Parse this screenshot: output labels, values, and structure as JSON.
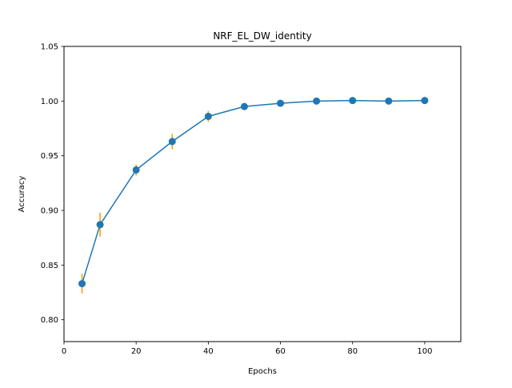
{
  "chart_data": {
    "type": "line",
    "title": "NRF_EL_DW_identity",
    "xlabel": "Epochs",
    "ylabel": "Accuracy",
    "xlim": [
      0,
      110
    ],
    "ylim": [
      0.78,
      1.05
    ],
    "xticks": [
      0,
      20,
      40,
      60,
      80,
      100
    ],
    "yticks": [
      0.8,
      0.85,
      0.9,
      0.95,
      1.0,
      1.05
    ],
    "grid": false,
    "series": [
      {
        "x": [
          5,
          10,
          20,
          30,
          40,
          50,
          60,
          70,
          80,
          90,
          100
        ],
        "y": [
          0.833,
          0.887,
          0.937,
          0.963,
          0.986,
          0.995,
          0.998,
          1.0,
          1.0005,
          1.0,
          1.0005
        ],
        "error": [
          0.009,
          0.011,
          0.005,
          0.007,
          0.005,
          0.002,
          0.002,
          0.001,
          0.0005,
          0.0005,
          0.0005
        ],
        "color": "#1f77b4",
        "error_color": "#ff9900"
      }
    ]
  }
}
